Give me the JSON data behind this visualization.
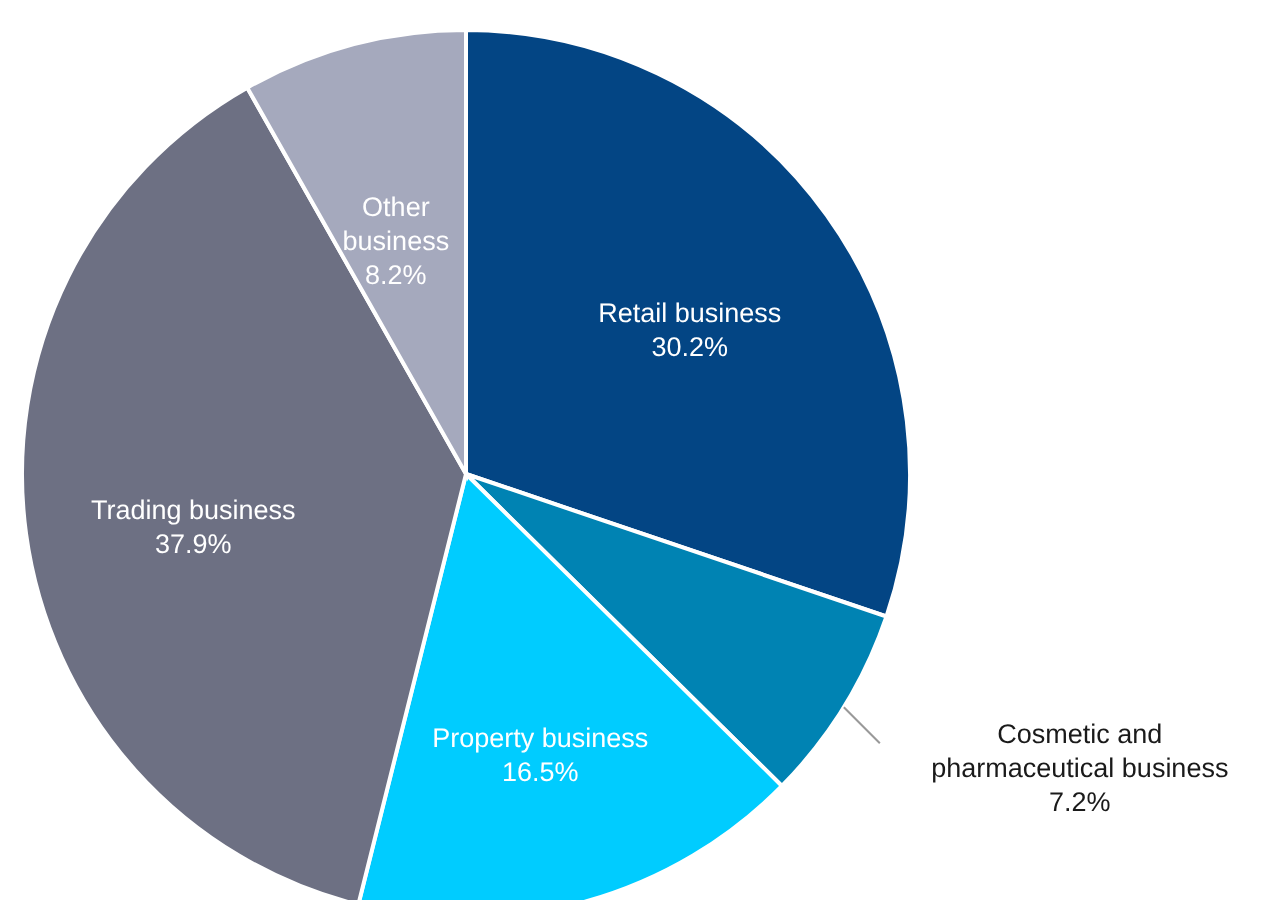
{
  "chart_data": {
    "type": "pie",
    "categories": [
      "Retail business",
      "Cosmetic and pharmaceutical business",
      "Property business",
      "Trading business",
      "Other business"
    ],
    "values": [
      30.2,
      7.2,
      16.5,
      37.9,
      8.2
    ],
    "colors": [
      "#034584",
      "#0083b3",
      "#00ccff",
      "#6d7083",
      "#a5a9bd"
    ],
    "value_labels": [
      "30.2%",
      "7.2%",
      "16.5%",
      "37.9%",
      "8.2%"
    ]
  }
}
